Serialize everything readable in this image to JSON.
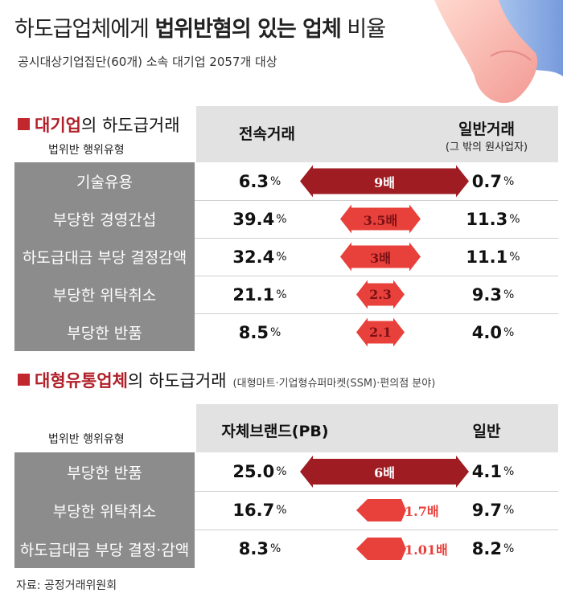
{
  "title_normal_1": "하도급업체에게 ",
  "title_bold": "법위반혐의 있는 업체",
  "title_normal_2": " 비율",
  "subtitle": "공시대상기업집단(60개) 소속 대기업 2057개 대상",
  "source": "자료: 공정거래위원회",
  "colors": {
    "accent_red": "#b1202a",
    "arrow_dark_red": "#9e1c22",
    "arrow_bright_red": "#e8403a",
    "category_gray": "#8c8c8c",
    "header_gray": "#e2e2e2"
  },
  "chart_data": [
    {
      "type": "table",
      "section_title_highlight": "대기업",
      "section_title_rest": "의 하도급거래",
      "row_header_label": "법위반 행위유형",
      "columns": [
        {
          "name": "전속거래",
          "sub": ""
        },
        {
          "name": "일반거래",
          "sub": "(그 밖의 원사업자)"
        }
      ],
      "unit": "%",
      "rows": [
        {
          "category": "기술유용",
          "exclusive": 6.3,
          "exclusive_label": "6.3",
          "general": 0.7,
          "general_label": "0.7",
          "ratio_label": "9배",
          "ratio_color": "dark",
          "ratio_direction": "both"
        },
        {
          "category": "부당한 경영간섭",
          "exclusive": 39.4,
          "exclusive_label": "39.4",
          "general": 11.3,
          "general_label": "11.3",
          "ratio_label": "3.5배",
          "ratio_color": "bright",
          "ratio_direction": "both"
        },
        {
          "category": "하도급대금 부당 결정감액",
          "exclusive": 32.4,
          "exclusive_label": "32.4",
          "general": 11.1,
          "general_label": "11.1",
          "ratio_label": "3배",
          "ratio_color": "bright",
          "ratio_direction": "both"
        },
        {
          "category": "부당한 위탁취소",
          "exclusive": 21.1,
          "exclusive_label": "21.1",
          "general": 9.3,
          "general_label": "9.3",
          "ratio_label": "2.3",
          "ratio_color": "bright",
          "ratio_direction": "both"
        },
        {
          "category": "부당한 반품",
          "exclusive": 8.5,
          "exclusive_label": "8.5",
          "general": 4.0,
          "general_label": "4.0",
          "ratio_label": "2.1",
          "ratio_color": "bright",
          "ratio_direction": "both"
        }
      ]
    },
    {
      "type": "table",
      "section_title_highlight": "대형유통업체",
      "section_title_rest": "의 하도급거래",
      "section_note": "(대형마트·기업형슈퍼마켓(SSM)·편의점 분야)",
      "row_header_label": "법위반 행위유형",
      "columns": [
        {
          "name": "자체브랜드(PB)",
          "sub": ""
        },
        {
          "name": "일반",
          "sub": ""
        }
      ],
      "unit": "%",
      "rows": [
        {
          "category": "부당한 반품",
          "exclusive": 25.0,
          "exclusive_label": "25.0",
          "general": 4.1,
          "general_label": "4.1",
          "ratio_label": "6배",
          "ratio_color": "dark",
          "ratio_direction": "both"
        },
        {
          "category": "부당한 위탁취소",
          "exclusive": 16.7,
          "exclusive_label": "16.7",
          "general": 9.7,
          "general_label": "9.7",
          "ratio_label": "1.7배",
          "ratio_color": "bright",
          "ratio_direction": "left"
        },
        {
          "category": "하도급대금 부당 결정·감액",
          "exclusive": 8.3,
          "exclusive_label": "8.3",
          "general": 8.2,
          "general_label": "8.2",
          "ratio_label": "1.01배",
          "ratio_color": "bright",
          "ratio_direction": "left"
        }
      ]
    }
  ]
}
